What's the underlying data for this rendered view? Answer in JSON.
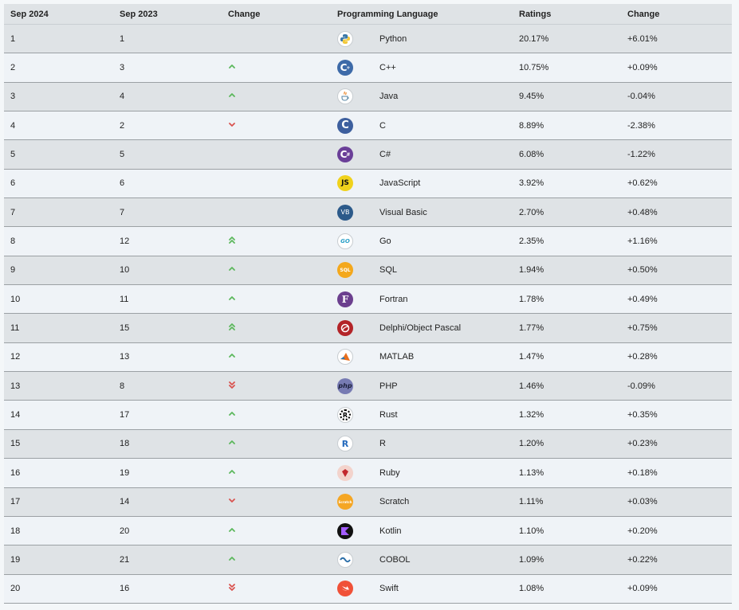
{
  "headers": {
    "rank_now": "Sep 2024",
    "rank_prev": "Sep 2023",
    "change": "Change",
    "language": "Programming Language",
    "ratings": "Ratings",
    "ratings_change": "Change"
  },
  "colors": {
    "up": "#5cb85c",
    "down": "#d9534f",
    "row_odd": "#dfe3e6",
    "row_even": "#eff3f7"
  },
  "rows": [
    {
      "now": "1",
      "prev": "1",
      "trend": "none",
      "lang": "Python",
      "icon": "python-logo-icon",
      "rating": "20.17%",
      "delta": "+6.01%"
    },
    {
      "now": "2",
      "prev": "3",
      "trend": "up",
      "lang": "C++",
      "icon": "cplusplus-logo-icon",
      "rating": "10.75%",
      "delta": "+0.09%"
    },
    {
      "now": "3",
      "prev": "4",
      "trend": "up",
      "lang": "Java",
      "icon": "java-logo-icon",
      "rating": "9.45%",
      "delta": "-0.04%"
    },
    {
      "now": "4",
      "prev": "2",
      "trend": "down",
      "lang": "C",
      "icon": "c-logo-icon",
      "rating": "8.89%",
      "delta": "-2.38%"
    },
    {
      "now": "5",
      "prev": "5",
      "trend": "none",
      "lang": "C#",
      "icon": "csharp-logo-icon",
      "rating": "6.08%",
      "delta": "-1.22%"
    },
    {
      "now": "6",
      "prev": "6",
      "trend": "none",
      "lang": "JavaScript",
      "icon": "javascript-logo-icon",
      "logo_text": "JS",
      "rating": "3.92%",
      "delta": "+0.62%"
    },
    {
      "now": "7",
      "prev": "7",
      "trend": "none",
      "lang": "Visual Basic",
      "icon": "visual-basic-logo-icon",
      "logo_text": "VB",
      "rating": "2.70%",
      "delta": "+0.48%"
    },
    {
      "now": "8",
      "prev": "12",
      "trend": "up2",
      "lang": "Go",
      "icon": "go-logo-icon",
      "logo_text": "GO",
      "rating": "2.35%",
      "delta": "+1.16%"
    },
    {
      "now": "9",
      "prev": "10",
      "trend": "up",
      "lang": "SQL",
      "icon": "sql-logo-icon",
      "logo_text": "SQL",
      "rating": "1.94%",
      "delta": "+0.50%"
    },
    {
      "now": "10",
      "prev": "11",
      "trend": "up",
      "lang": "Fortran",
      "icon": "fortran-logo-icon",
      "logo_text": "F",
      "rating": "1.78%",
      "delta": "+0.49%"
    },
    {
      "now": "11",
      "prev": "15",
      "trend": "up2",
      "lang": "Delphi/Object Pascal",
      "icon": "delphi-logo-icon",
      "rating": "1.77%",
      "delta": "+0.75%"
    },
    {
      "now": "12",
      "prev": "13",
      "trend": "up",
      "lang": "MATLAB",
      "icon": "matlab-logo-icon",
      "rating": "1.47%",
      "delta": "+0.28%"
    },
    {
      "now": "13",
      "prev": "8",
      "trend": "down2",
      "lang": "PHP",
      "icon": "php-logo-icon",
      "logo_text": "php",
      "rating": "1.46%",
      "delta": "-0.09%"
    },
    {
      "now": "14",
      "prev": "17",
      "trend": "up",
      "lang": "Rust",
      "icon": "rust-logo-icon",
      "logo_text": "R",
      "rating": "1.32%",
      "delta": "+0.35%"
    },
    {
      "now": "15",
      "prev": "18",
      "trend": "up",
      "lang": "R",
      "icon": "r-logo-icon",
      "logo_text": "R",
      "rating": "1.20%",
      "delta": "+0.23%"
    },
    {
      "now": "16",
      "prev": "19",
      "trend": "up",
      "lang": "Ruby",
      "icon": "ruby-logo-icon",
      "rating": "1.13%",
      "delta": "+0.18%"
    },
    {
      "now": "17",
      "prev": "14",
      "trend": "down",
      "lang": "Scratch",
      "icon": "scratch-logo-icon",
      "logo_text": "Scratch",
      "rating": "1.11%",
      "delta": "+0.03%"
    },
    {
      "now": "18",
      "prev": "20",
      "trend": "up",
      "lang": "Kotlin",
      "icon": "kotlin-logo-icon",
      "rating": "1.10%",
      "delta": "+0.20%"
    },
    {
      "now": "19",
      "prev": "21",
      "trend": "up",
      "lang": "COBOL",
      "icon": "cobol-logo-icon",
      "rating": "1.09%",
      "delta": "+0.22%"
    },
    {
      "now": "20",
      "prev": "16",
      "trend": "down2",
      "lang": "Swift",
      "icon": "swift-logo-icon",
      "rating": "1.08%",
      "delta": "+0.09%"
    }
  ]
}
